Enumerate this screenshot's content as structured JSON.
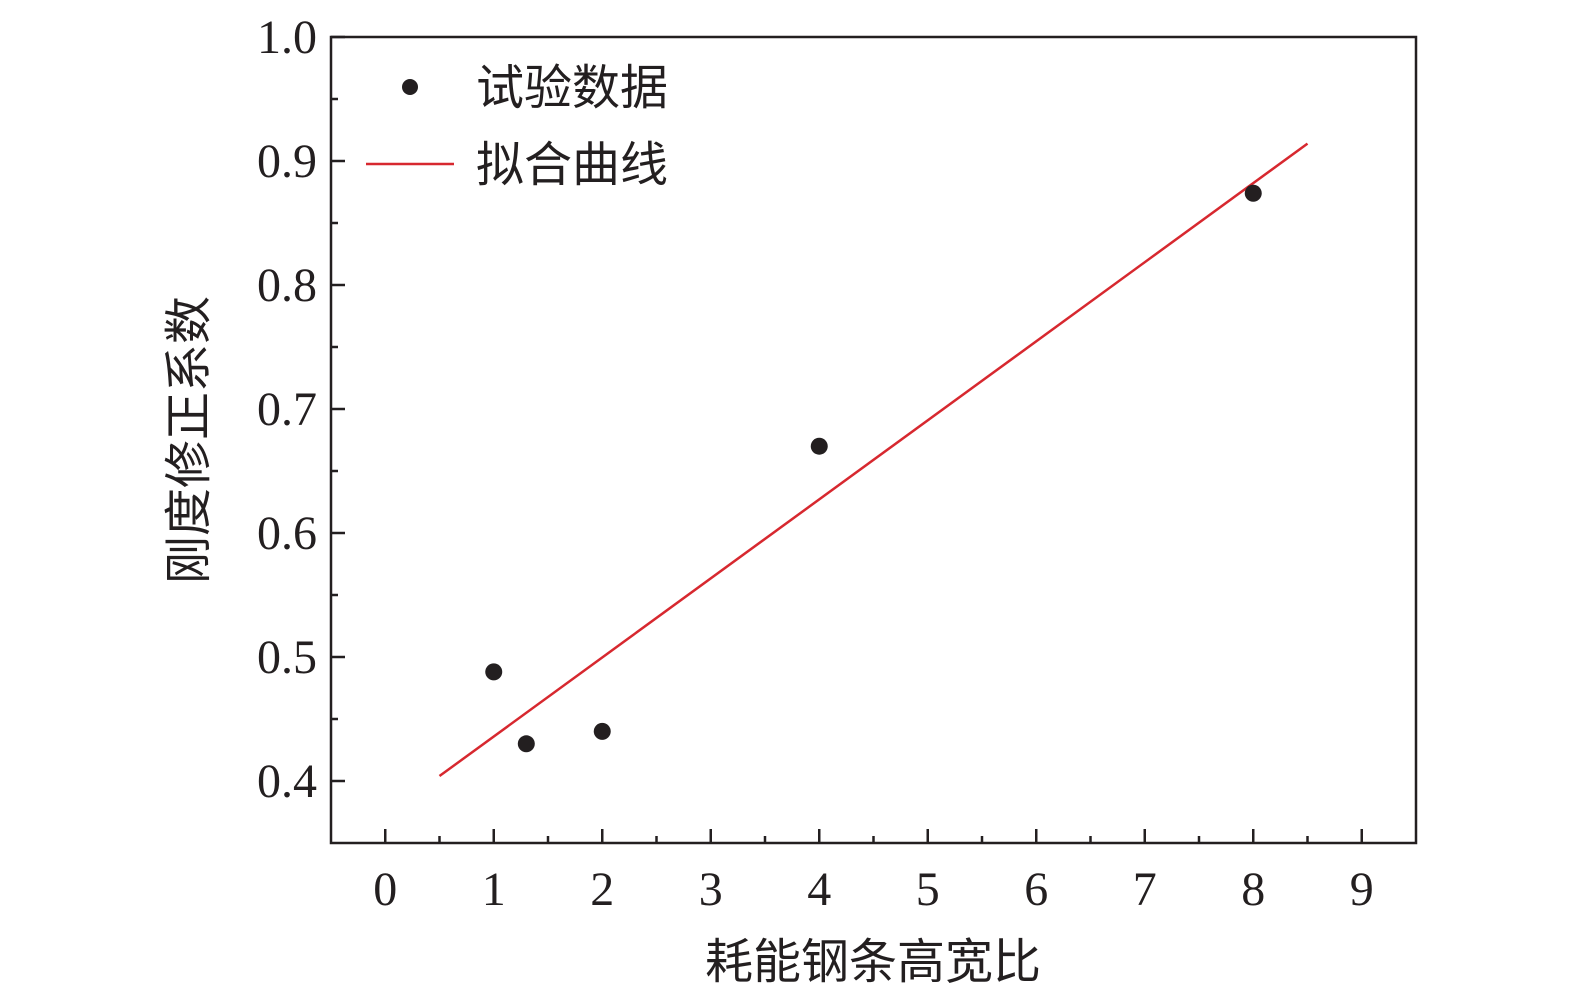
{
  "chart_data": {
    "type": "scatter",
    "xlabel": "耗能钢条高宽比",
    "ylabel": "刚度修正系数",
    "xlim": [
      -0.5,
      9.5
    ],
    "ylim": [
      0.35,
      1.0
    ],
    "x_ticks": [
      "0",
      "1",
      "2",
      "3",
      "4",
      "5",
      "6",
      "7",
      "8",
      "9"
    ],
    "y_ticks": [
      "0.4",
      "0.5",
      "0.6",
      "0.7",
      "0.8",
      "0.9",
      "1.0"
    ],
    "grid": false,
    "legend_position": "top-left",
    "series": [
      {
        "name": "试验数据",
        "kind": "scatter",
        "color": "#231f20",
        "points": [
          [
            1.0,
            0.488
          ],
          [
            1.3,
            0.43
          ],
          [
            2.0,
            0.44
          ],
          [
            4.0,
            0.67
          ],
          [
            8.0,
            0.874
          ]
        ]
      },
      {
        "name": "拟合曲线",
        "kind": "line",
        "color": "#d7282f",
        "points": [
          [
            0.5,
            0.404
          ],
          [
            8.5,
            0.914
          ]
        ]
      }
    ]
  }
}
